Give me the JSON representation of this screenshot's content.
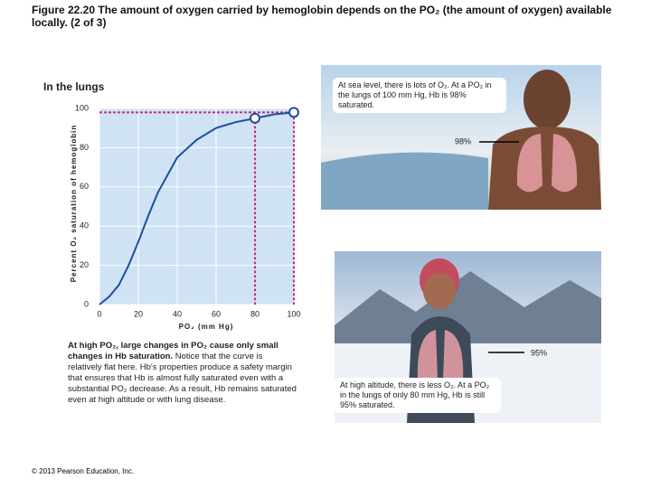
{
  "figure_title": "Figure 22.20 The amount of oxygen carried by hemoglobin depends on the PO₂ (the amount of oxygen) available locally. (2 of 3)",
  "chart_data": {
    "type": "line",
    "title": "In the lungs",
    "x_label": "PO₂ (mm Hg)",
    "y_label": "Percent O₂ saturation of hemoglobin",
    "x": [
      0,
      5,
      10,
      15,
      20,
      25,
      30,
      40,
      50,
      60,
      70,
      80,
      90,
      100
    ],
    "values": [
      0,
      4,
      10,
      20,
      32,
      45,
      57,
      75,
      84,
      90,
      93,
      95,
      97,
      98
    ],
    "color": "#1f4e9c",
    "background": "#cfe3f5",
    "grid": true,
    "xlim": [
      0,
      100
    ],
    "ylim": [
      0,
      100
    ],
    "xticks": [
      0,
      20,
      40,
      60,
      80,
      100
    ],
    "yticks": [
      0,
      20,
      40,
      60,
      80,
      100
    ],
    "reference_lines": {
      "x": [
        80,
        100
      ],
      "y": [
        98
      ],
      "color": "#c2307a"
    }
  },
  "callouts": {
    "sea_level": "At sea level, there is lots of O₂. At a PO₂ in the lungs of 100 mm Hg, Hb is 98% saturated.",
    "sea_level_label": "98%",
    "altitude": "At high altitude, there is less O₂. At a PO₂ in the lungs of only 80 mm Hg, Hb is still 95% saturated.",
    "altitude_label": "95%"
  },
  "note": {
    "bold": "At high PO₂, large changes in PO₂ cause only small changes in Hb saturation.",
    "text": " Notice that the curve is relatively flat here. Hb's properties produce a safety margin that ensures that Hb is almost fully saturated even with a substantial PO₂ decrease. As a result, Hb remains saturated even at high altitude or with lung disease."
  },
  "copyright": "© 2013 Pearson Education, Inc."
}
